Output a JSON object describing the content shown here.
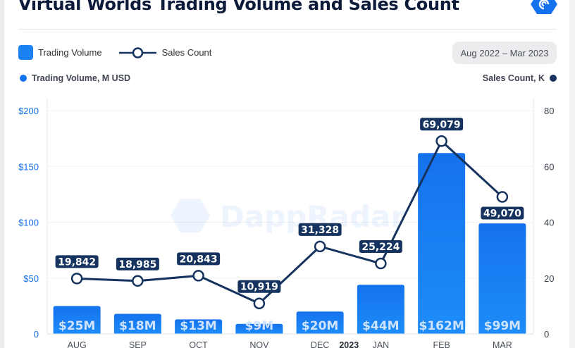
{
  "header": {
    "title": "Virtual Worlds Trading Volume and Sales Count",
    "logo_icon": "dappradar-logo-icon",
    "date_range": "Aug 2022 – Mar 2023",
    "watermark": "DappRadar"
  },
  "legend": {
    "bar_label": "Trading Volume",
    "line_label": "Sales Count"
  },
  "axis_titles": {
    "left": "Trading Volume, M USD",
    "right": "Sales Count, K"
  },
  "colors": {
    "bar": "#1b82f5",
    "bar_top": "#1572ee",
    "line": "#15335e",
    "label_bg": "#15335e",
    "left_axis_text": "#1572ee",
    "right_axis_text": "#3d4350",
    "title": "#0d1b3a"
  },
  "chart_data": {
    "type": "bar",
    "title": "Virtual Worlds Trading Volume and Sales Count",
    "categories": [
      "AUG",
      "SEP",
      "OCT",
      "NOV",
      "DEC",
      "JAN",
      "FEB",
      "MAR"
    ],
    "year_marker": "2023",
    "series": [
      {
        "name": "Trading Volume",
        "type": "bar",
        "axis": "left",
        "unit": "M USD",
        "values": [
          25,
          18,
          13,
          9,
          20,
          44,
          162,
          99
        ],
        "labels": [
          "$25M",
          "$18M",
          "$13M",
          "$9M",
          "$20M",
          "$44M",
          "$162M",
          "$99M"
        ]
      },
      {
        "name": "Sales Count",
        "type": "line",
        "axis": "right",
        "unit": "K",
        "values": [
          19.842,
          18.985,
          20.843,
          10.919,
          31.328,
          25.224,
          69.079,
          49.07
        ],
        "labels": [
          "19,842",
          "18,985",
          "20,843",
          "10,919",
          "31,328",
          "25,224",
          "69,079",
          "49,070"
        ]
      }
    ],
    "left_axis": {
      "label": "Trading Volume, M USD",
      "ylim": [
        0,
        200
      ],
      "ticks": [
        "0",
        "$50",
        "$100",
        "$150",
        "$200"
      ],
      "tick_values": [
        0,
        50,
        100,
        150,
        200
      ]
    },
    "right_axis": {
      "label": "Sales Count, K",
      "ylim": [
        0,
        80
      ],
      "ticks": [
        "0",
        "20",
        "40",
        "60",
        "80"
      ],
      "tick_values": [
        0,
        20,
        40,
        60,
        80
      ]
    },
    "grid": true,
    "legend_position": "top-left"
  }
}
